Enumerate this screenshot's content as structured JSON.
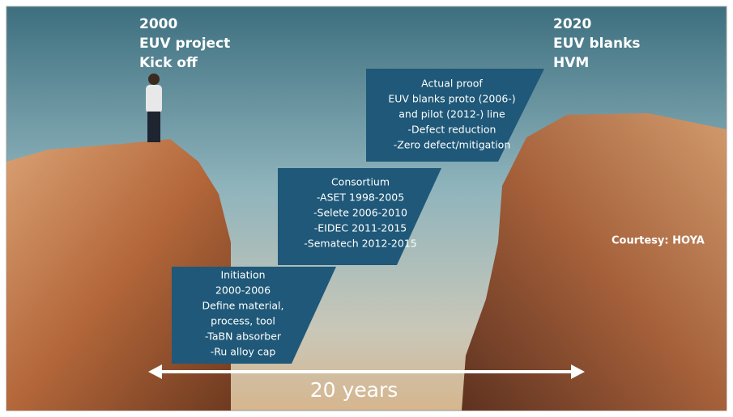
{
  "left_label": {
    "lines": [
      "2000",
      "EUV project",
      "Kick off"
    ]
  },
  "right_label": {
    "lines": [
      "2020",
      "EUV blanks",
      "HVM"
    ]
  },
  "boxes": [
    {
      "lines": [
        "Initiation",
        "2000-2006",
        "Define material,",
        "process, tool",
        "-TaBN absorber",
        "-Ru alloy cap"
      ]
    },
    {
      "lines": [
        "Consortium",
        "-ASET 1998-2005",
        "-Selete 2006-2010",
        "-EIDEC 2011-2015",
        "-Sematech 2012-2015"
      ]
    },
    {
      "lines": [
        "Actual proof",
        "EUV blanks proto (2006-)",
        "and pilot (2012-) line",
        "-Defect reduction",
        "-Zero defect/mitigation"
      ]
    }
  ],
  "courtesy": "Courtesy: HOYA",
  "span_label": "20 years"
}
